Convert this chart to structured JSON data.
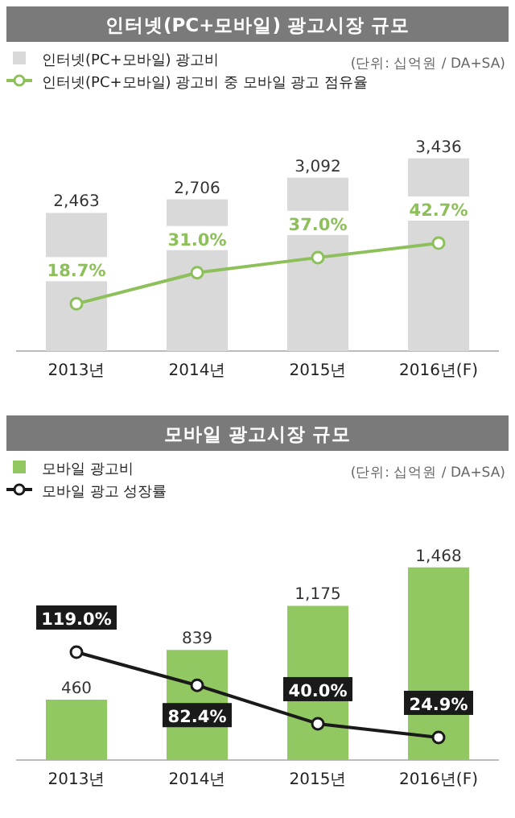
{
  "chart_data": [
    {
      "type": "bar",
      "title": "인터넷(PC+모바일) 광고시장 규모",
      "annotations": [
        "(단위: 십억원 / DA+SA)"
      ],
      "categories": [
        "2013년",
        "2014년",
        "2015년",
        "2016년(F)"
      ],
      "legend": "top left",
      "series": [
        {
          "name": "인터넷(PC+모바일) 광고비",
          "color": "#d9d9d9",
          "values": [
            2463,
            2706,
            3092,
            3436
          ],
          "value_labels": [
            "2,463",
            "2,706",
            "3,092",
            "3,436"
          ]
        },
        {
          "type": "line",
          "axis": "y2",
          "marker": "circle",
          "name": "인터넷(PC+모바일) 광고비 중 모바일 광고 점유율",
          "color": "#8dc05a",
          "values": [
            18.7,
            31.0,
            37.0,
            42.7
          ],
          "value_labels": [
            "18.7%",
            "31.0%",
            "37.0%",
            "42.7%"
          ]
        }
      ]
    },
    {
      "type": "bar",
      "title": "모바일 광고시장 규모",
      "annotations": [
        "(단위: 십억원 / DA+SA)"
      ],
      "categories": [
        "2013년",
        "2014년",
        "2015년",
        "2016년(F)"
      ],
      "legend": "top left",
      "series": [
        {
          "name": "모바일 광고비",
          "color": "#92c861",
          "values": [
            460,
            839,
            1175,
            1468
          ],
          "value_labels": [
            "460",
            "839",
            "1,175",
            "1,468"
          ]
        },
        {
          "type": "line",
          "axis": "y2",
          "marker": "circle",
          "name": "모바일 광고 성장률",
          "color": "#1a1a1a",
          "values": [
            119.0,
            82.4,
            40.0,
            24.9
          ],
          "value_labels": [
            "119.0%",
            "82.4%",
            "40.0%",
            "24.9%"
          ]
        }
      ]
    }
  ]
}
